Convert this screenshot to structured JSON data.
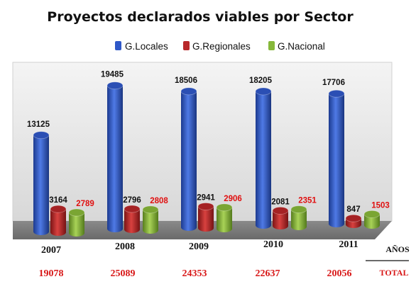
{
  "chart_data": {
    "type": "bar",
    "title": "Proyectos declarados viables por Sector",
    "categories": [
      "2007",
      "2008",
      "2009",
      "2010",
      "2011"
    ],
    "series": [
      {
        "name": "G.Locales",
        "values": [
          13125,
          19485,
          18506,
          18205,
          17706
        ],
        "color": "#2f58c8"
      },
      {
        "name": "G.Regionales",
        "values": [
          3164,
          2796,
          2941,
          2081,
          847
        ],
        "color": "#b8282a"
      },
      {
        "name": "G.Nacional",
        "values": [
          2789,
          2808,
          2906,
          2351,
          1503
        ],
        "color": "#86b83a"
      }
    ],
    "totals": [
      19078,
      25089,
      24353,
      22637,
      20056
    ],
    "x_axis_caption": "AÑOS",
    "total_caption": "TOTAL",
    "ylim": [
      0,
      21000
    ],
    "grid": false,
    "legend_position": "top",
    "red_labelled_series": "G.Nacional"
  }
}
